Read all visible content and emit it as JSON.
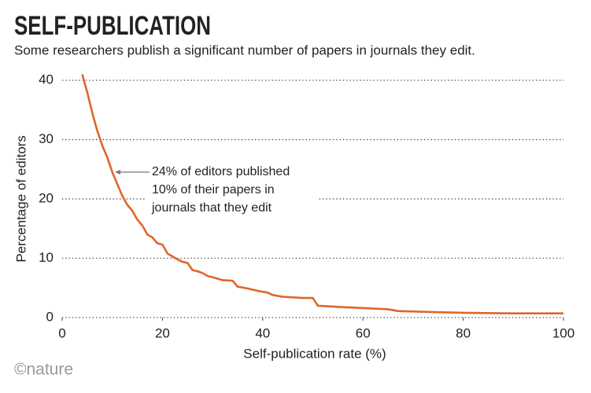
{
  "chart_data": {
    "type": "line",
    "title": "SELF-PUBLICATION",
    "subtitle": "Some researchers publish a significant number of papers in journals they edit.",
    "x_label": "Self-publication rate (%)",
    "y_label": "Percentage of editors",
    "annotation": [
      "24% of editors published",
      "10% of their papers in",
      "journals that they edit"
    ],
    "source": "©nature",
    "x": [
      4,
      5,
      6,
      7,
      8,
      9,
      10,
      11,
      12,
      13,
      14,
      15,
      16,
      17,
      18,
      19,
      20,
      21,
      22,
      23,
      24,
      25,
      26,
      27,
      28,
      29,
      30,
      32,
      34,
      35,
      37,
      39,
      41,
      42,
      44,
      46,
      48,
      50,
      51,
      55,
      60,
      65,
      67,
      75,
      80,
      90,
      100
    ],
    "values": [
      41,
      38,
      34.5,
      31.5,
      29,
      27,
      24.5,
      22.5,
      20.5,
      19,
      18,
      16.5,
      15.5,
      14,
      13.5,
      12.5,
      12.3,
      10.8,
      10.3,
      9.8,
      9.4,
      9.2,
      8,
      7.8,
      7.5,
      7,
      6.8,
      6.3,
      6.2,
      5.2,
      4.9,
      4.5,
      4.2,
      3.8,
      3.5,
      3.4,
      3.3,
      3.3,
      2,
      1.8,
      1.6,
      1.4,
      1.1,
      0.9,
      0.8,
      0.7,
      0.7
    ],
    "color": "#e0662a",
    "xlim": [
      0,
      100
    ],
    "xticks": [
      0,
      20,
      40,
      60,
      80,
      100
    ],
    "ylim": [
      0,
      42
    ],
    "yticks": [
      0,
      10,
      20,
      30,
      40
    ],
    "grid": true
  }
}
